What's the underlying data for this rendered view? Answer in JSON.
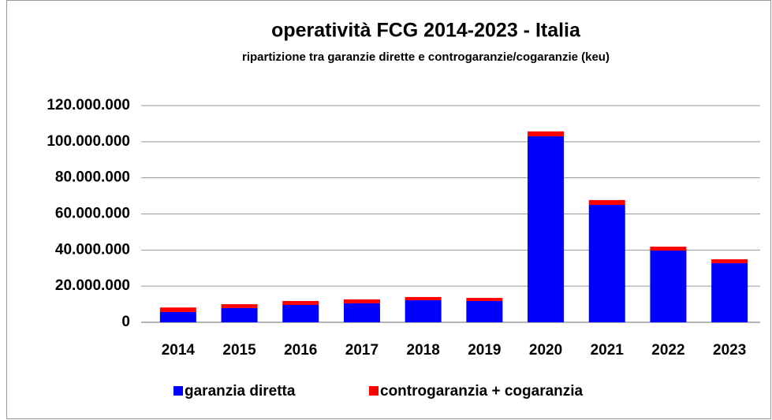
{
  "chart_data": {
    "type": "stacked_bar",
    "title": "operatività FCG 2014-2023 - Italia",
    "subtitle": "ripartizione tra garanzie dirette e controgaranzie/cogaranzie (keu)",
    "categories": [
      "2014",
      "2015",
      "2016",
      "2017",
      "2018",
      "2019",
      "2020",
      "2021",
      "2022",
      "2023"
    ],
    "series": [
      {
        "name": "garanzia diretta",
        "color": "#0000ff",
        "values": [
          5700000,
          7900000,
          9600000,
          10500000,
          12200000,
          11800000,
          103000000,
          65000000,
          39700000,
          32700000
        ]
      },
      {
        "name": "controgaranzia + cogaranzia",
        "color": "#ff0000",
        "values": [
          2500000,
          2100000,
          2200000,
          2200000,
          1800000,
          1700000,
          2700000,
          2700000,
          2200000,
          2200000
        ]
      }
    ],
    "ylim": [
      0,
      120000000
    ],
    "yticks": [
      0,
      {
        "value": 20000000,
        "label": "20.000.000"
      },
      {
        "value": 40000000,
        "label": "40.000.000"
      },
      {
        "value": 60000000,
        "label": "60.000.000"
      },
      {
        "value": 80000000,
        "label": "80.000.000"
      },
      {
        "value": 100000000,
        "label": "100.000.000"
      },
      {
        "value": 120000000,
        "label": "120.000.000"
      }
    ],
    "grid": true,
    "legend": "bottom"
  }
}
